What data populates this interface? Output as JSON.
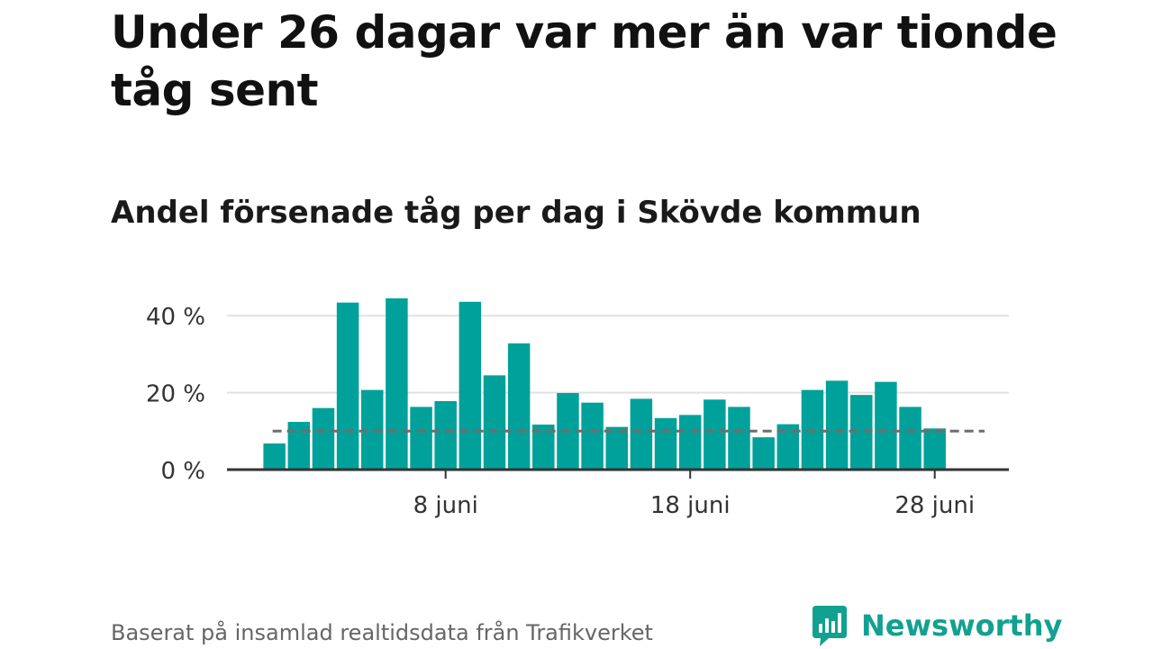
{
  "title": "Under 26 dagar var mer än var tionde tåg sent",
  "subtitle": "Andel försenade tåg per dag i Skövde kommun",
  "footer": {
    "source": "Baserat på insamlad realtidsdata från Trafikverket",
    "brand": "Newsworthy",
    "brand_color": "#12a190"
  },
  "colors": {
    "bar": "#00a19a",
    "reference_line": "#6e6e6e",
    "grid": "#e2e2e2",
    "axis": "#333333"
  },
  "chart_data": {
    "type": "bar",
    "title": "Andel försenade tåg per dag i Skövde kommun",
    "xlabel": "",
    "ylabel": "",
    "x_tick_labels": [
      "8 juni",
      "18 juni",
      "28 juni"
    ],
    "x_tick_days": [
      8,
      18,
      28
    ],
    "y_tick_labels": [
      "0 %",
      "20 %",
      "40 %"
    ],
    "y_ticks": [
      0,
      20,
      40
    ],
    "ylim": [
      0,
      45
    ],
    "xlim_days": [
      -1,
      31
    ],
    "grid": true,
    "days": [
      1,
      2,
      3,
      4,
      5,
      6,
      7,
      8,
      9,
      10,
      11,
      12,
      13,
      14,
      15,
      16,
      17,
      18,
      19,
      20,
      21,
      22,
      23,
      24,
      25,
      26,
      27,
      28
    ],
    "values": [
      6.8,
      12.4,
      16.0,
      43.4,
      20.7,
      44.5,
      16.3,
      17.8,
      43.6,
      24.5,
      32.8,
      11.7,
      19.9,
      17.4,
      11.1,
      18.4,
      13.4,
      14.2,
      18.2,
      16.3,
      8.4,
      11.8,
      20.7,
      23.1,
      19.4,
      22.8,
      16.3,
      10.7
    ],
    "reference_line": {
      "value": 10,
      "from_day": 1,
      "to_day": 30
    }
  }
}
